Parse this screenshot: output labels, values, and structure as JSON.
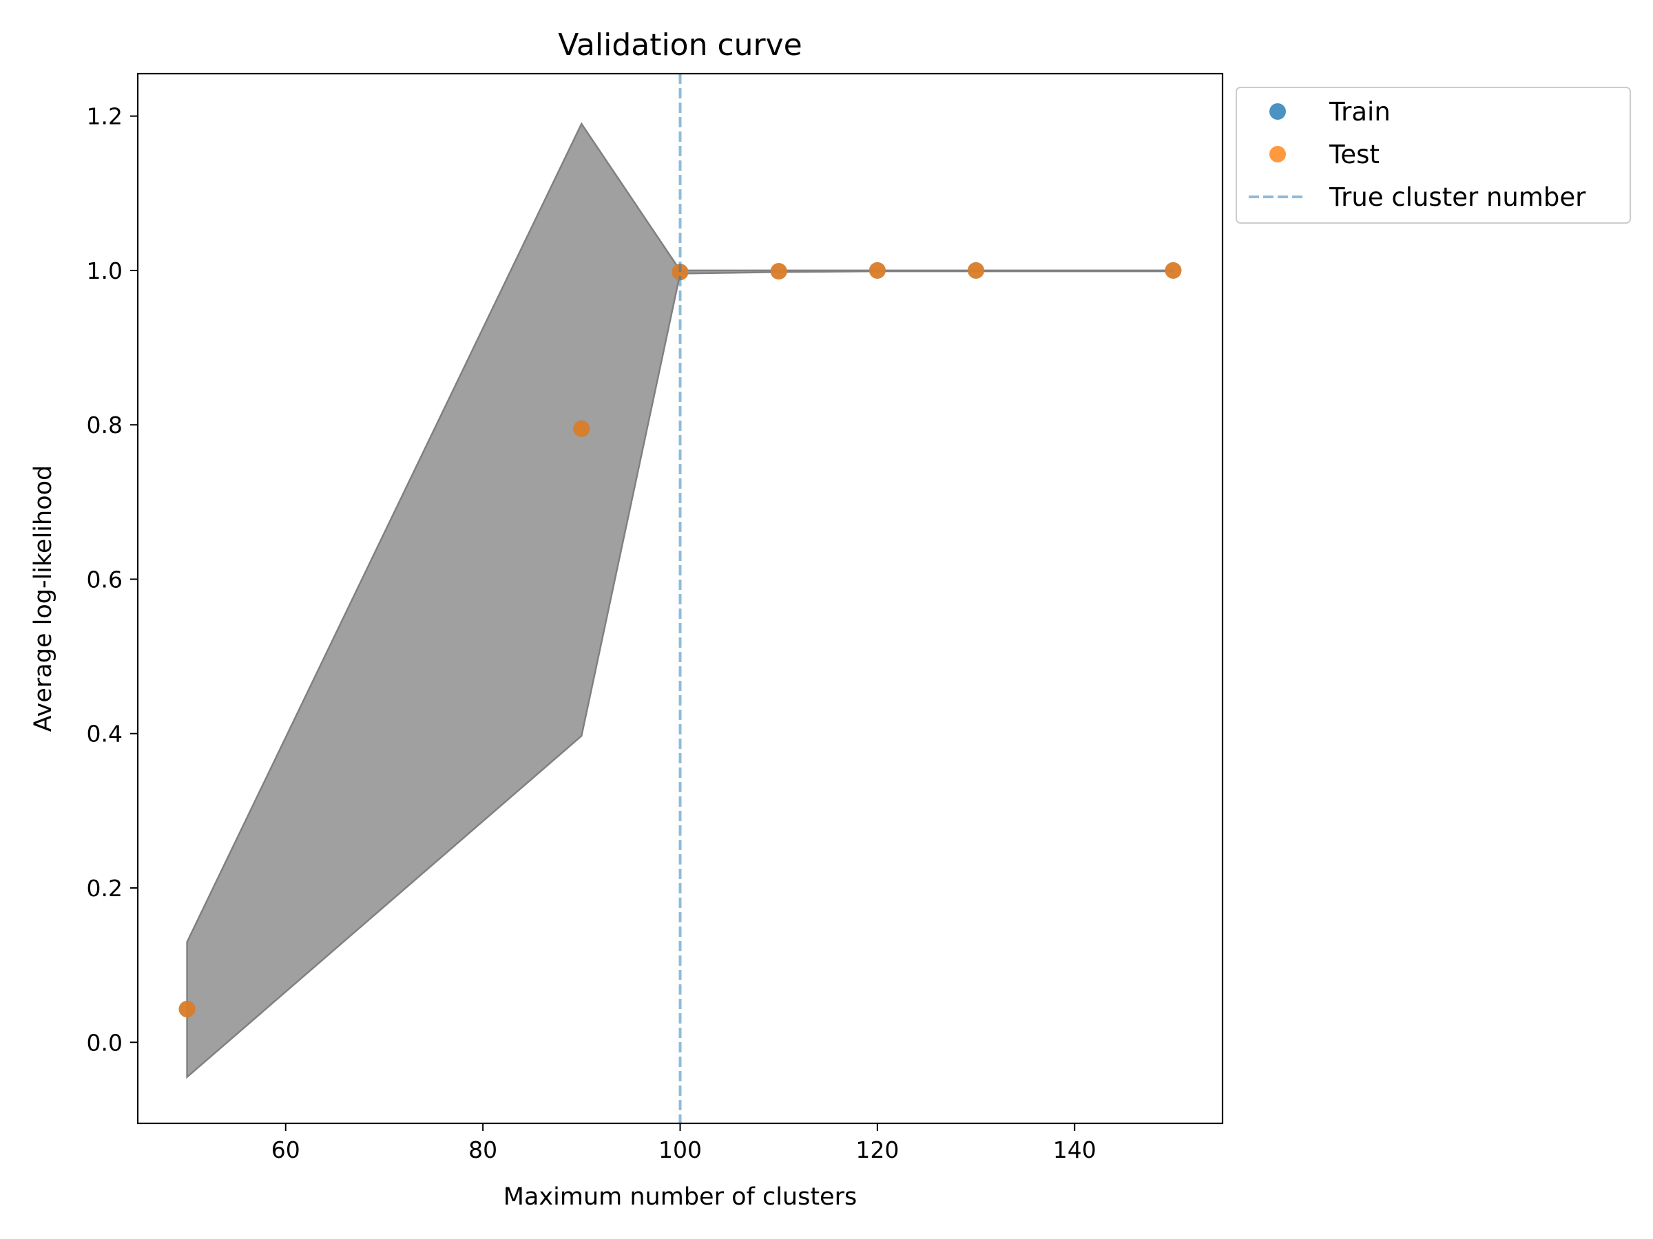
{
  "chart_data": {
    "type": "line",
    "title": "Validation curve",
    "xlabel": "Maximum number of clusters",
    "ylabel": "Average log-likelihood",
    "xlim": [
      45,
      155
    ],
    "ylim": [
      -0.105,
      1.255
    ],
    "xticks": [
      60,
      80,
      100,
      120,
      140
    ],
    "yticks": [
      0.0,
      0.2,
      0.4,
      0.6,
      0.8,
      1.0,
      1.2
    ],
    "x": [
      50,
      90,
      100,
      110,
      120,
      130,
      150
    ],
    "series": [
      {
        "name": "Train",
        "color": "#1f77b4",
        "marker": "circle",
        "values": [
          0.043,
          0.795,
          0.998,
          0.999,
          1.0,
          1.0,
          1.0
        ]
      },
      {
        "name": "Test",
        "color": "#ff7f0e",
        "marker": "circle",
        "values": [
          0.043,
          0.795,
          0.998,
          0.999,
          1.0,
          1.0,
          1.0
        ]
      }
    ],
    "band": {
      "color": "#808080",
      "upper": [
        0.13,
        1.19,
        1.0,
        1.0,
        1.0,
        1.0,
        1.0
      ],
      "lower": [
        -0.045,
        0.397,
        0.996,
        0.998,
        0.999,
        0.999,
        0.999
      ]
    },
    "vline": {
      "name": "True cluster number",
      "x": 100,
      "color": "#1f77b4",
      "style": "dashed"
    },
    "legend_position": "outside-top-right",
    "grid": false
  }
}
